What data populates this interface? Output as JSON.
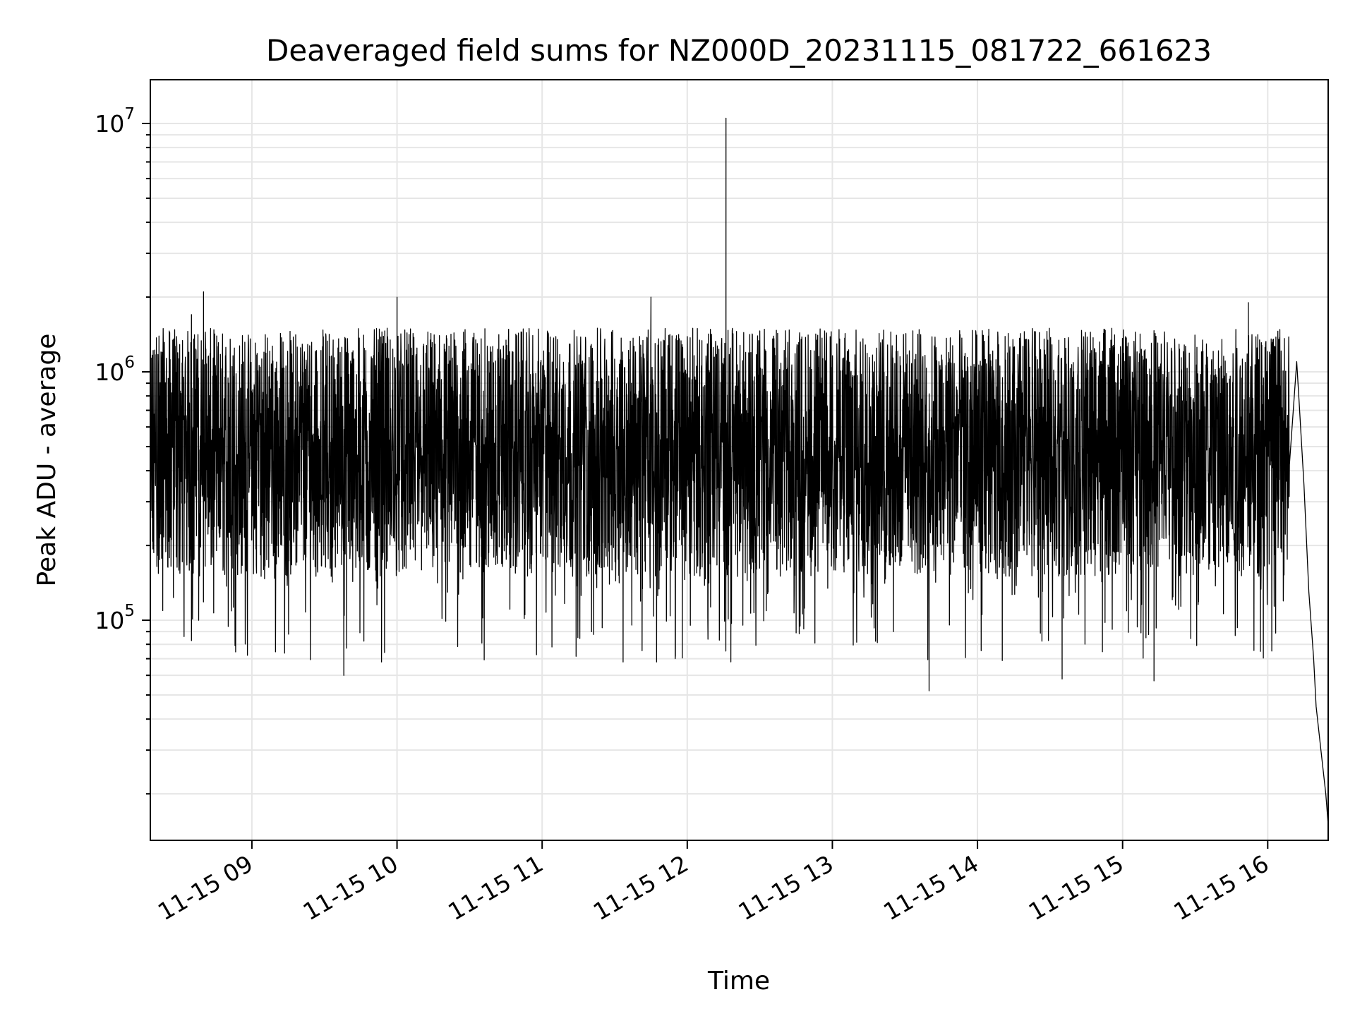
{
  "chart_data": {
    "type": "line",
    "title": "Deaveraged field sums for NZ000D_20231115_081722_661623",
    "xlabel": "Time",
    "ylabel": "Peak ADU - average",
    "yscale": "log",
    "xlim": [
      "2023-11-15 08:18",
      "2023-11-15 16:25"
    ],
    "ylim": [
      13000,
      15000000
    ],
    "grid": true,
    "line_color": "#000000",
    "grid_color": "#e6e6e6",
    "x_ticks": [
      {
        "time": "2023-11-15 09:00",
        "label": "11-15 09"
      },
      {
        "time": "2023-11-15 10:00",
        "label": "11-15 10"
      },
      {
        "time": "2023-11-15 11:00",
        "label": "11-15 11"
      },
      {
        "time": "2023-11-15 12:00",
        "label": "11-15 12"
      },
      {
        "time": "2023-11-15 13:00",
        "label": "11-15 13"
      },
      {
        "time": "2023-11-15 14:00",
        "label": "11-15 14"
      },
      {
        "time": "2023-11-15 15:00",
        "label": "11-15 15"
      },
      {
        "time": "2023-11-15 16:00",
        "label": "11-15 16"
      }
    ],
    "y_ticks": [
      {
        "value": 100000,
        "base": "10",
        "exp": "5"
      },
      {
        "value": 1000000,
        "base": "10",
        "exp": "6"
      },
      {
        "value": 10000000,
        "base": "10",
        "exp": "7"
      }
    ],
    "noise_series": {
      "description_range": [
        "2023-11-15 08:18",
        "2023-11-15 16:09"
      ],
      "typical_range": [
        300000,
        1500000
      ],
      "dip_min": 52000
    },
    "series": [
      {
        "points": [
          [
            "2023-11-15 08:18",
            600000
          ],
          [
            "2023-11-15 08:35",
            1700000
          ],
          [
            "2023-11-15 08:38",
            100000
          ],
          [
            "2023-11-15 08:40",
            2100000
          ],
          [
            "2023-11-15 09:00",
            650000
          ],
          [
            "2023-11-15 09:38",
            60000
          ],
          [
            "2023-11-15 10:00",
            2000000
          ],
          [
            "2023-11-15 10:00",
            1100000
          ],
          [
            "2023-11-15 11:00",
            850000
          ],
          [
            "2023-11-15 11:45",
            2000000
          ],
          [
            "2023-11-15 11:55",
            70000
          ],
          [
            "2023-11-15 12:16",
            10500000
          ],
          [
            "2023-11-15 12:16",
            150000
          ],
          [
            "2023-11-15 13:00",
            800000
          ],
          [
            "2023-11-15 13:40",
            52000
          ],
          [
            "2023-11-15 14:00",
            800000
          ],
          [
            "2023-11-15 14:35",
            58000
          ],
          [
            "2023-11-15 15:00",
            700000
          ],
          [
            "2023-11-15 15:13",
            57000
          ],
          [
            "2023-11-15 15:52",
            1900000
          ],
          [
            "2023-11-15 16:05",
            700000
          ],
          [
            "2023-11-15 16:12",
            1100000
          ],
          [
            "2023-11-15 16:13",
            750000
          ],
          [
            "2023-11-15 16:15",
            350000
          ],
          [
            "2023-11-15 16:17",
            130000
          ],
          [
            "2023-11-15 16:19",
            70000
          ],
          [
            "2023-11-15 16:20",
            45000
          ],
          [
            "2023-11-15 16:22",
            30000
          ],
          [
            "2023-11-15 16:24",
            20000
          ],
          [
            "2023-11-15 16:25",
            15000
          ]
        ]
      }
    ]
  }
}
